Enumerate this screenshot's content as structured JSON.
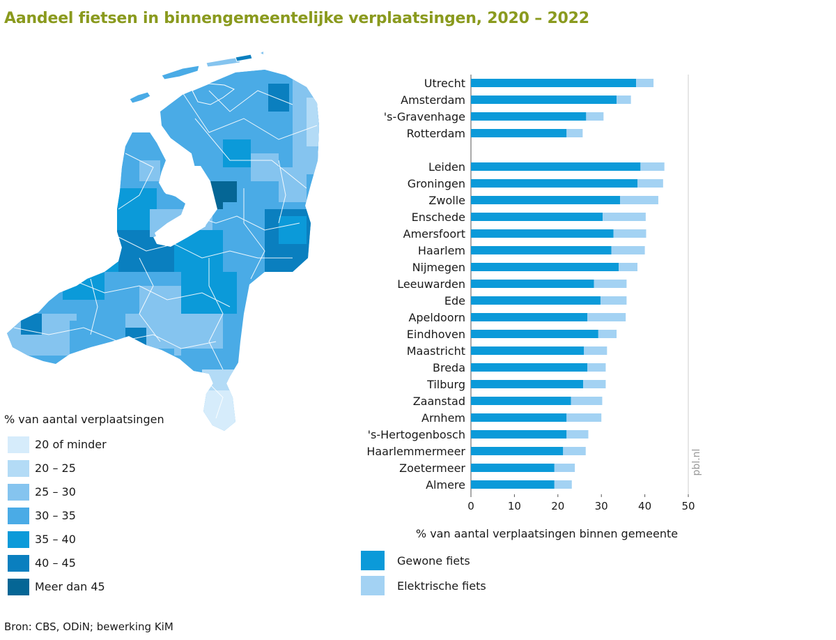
{
  "title": "Aandeel fietsen in binnengemeentelijke verplaatsingen, 2020 – 2022",
  "map_legend": {
    "title": "% van aantal verplaatsingen",
    "items": [
      {
        "label": "20 of minder",
        "color": "#d6ecfb"
      },
      {
        "label": "20 – 25",
        "color": "#b3dbf6"
      },
      {
        "label": "25 – 30",
        "color": "#85c4ef"
      },
      {
        "label": "30 – 35",
        "color": "#4aabe6"
      },
      {
        "label": "35 – 40",
        "color": "#0b9ad9"
      },
      {
        "label": "40 – 45",
        "color": "#0a7fbf"
      },
      {
        "label": "Meer dan 45",
        "color": "#056695"
      }
    ]
  },
  "chart_data": {
    "type": "bar",
    "orientation": "horizontal",
    "stacked": true,
    "xlabel": "% van aantal verplaatsingen binnen gemeente",
    "xlim": [
      0,
      50
    ],
    "xticks": [
      0,
      10,
      20,
      30,
      40,
      50
    ],
    "grid": false,
    "categories": [
      "Utrecht",
      "Amsterdam",
      "'s-Gravenhage",
      "Rotterdam",
      "Leiden",
      "Groningen",
      "Zwolle",
      "Enschede",
      "Amersfoort",
      "Haarlem",
      "Nijmegen",
      "Leeuwarden",
      "Ede",
      "Apeldoorn",
      "Eindhoven",
      "Maastricht",
      "Breda",
      "Tilburg",
      "Zaanstad",
      "Arnhem",
      "'s-Hertogenbosch",
      "Haarlemmermeer",
      "Zoetermeer",
      "Almere"
    ],
    "series": [
      {
        "name": "Gewone fiets",
        "color": "#0b9ad9",
        "values": [
          38.0,
          33.5,
          26.5,
          22.0,
          39.0,
          38.3,
          34.3,
          30.3,
          32.8,
          32.3,
          34.0,
          28.3,
          29.8,
          26.8,
          29.3,
          26.0,
          26.8,
          25.8,
          23.0,
          22.0,
          22.0,
          21.2,
          19.2,
          19.2
        ]
      },
      {
        "name": "Elektrische fiets",
        "color": "#a3d2f3",
        "values": [
          4.0,
          3.3,
          4.0,
          3.7,
          5.5,
          5.9,
          8.8,
          9.9,
          7.5,
          7.7,
          4.3,
          7.5,
          6.0,
          8.8,
          4.2,
          5.3,
          4.2,
          5.2,
          7.2,
          8.0,
          5.0,
          5.2,
          4.7,
          4.0
        ]
      }
    ],
    "watermark": "pbl.nl"
  },
  "source": "Bron: CBS, ODiN; bewerking KiM"
}
